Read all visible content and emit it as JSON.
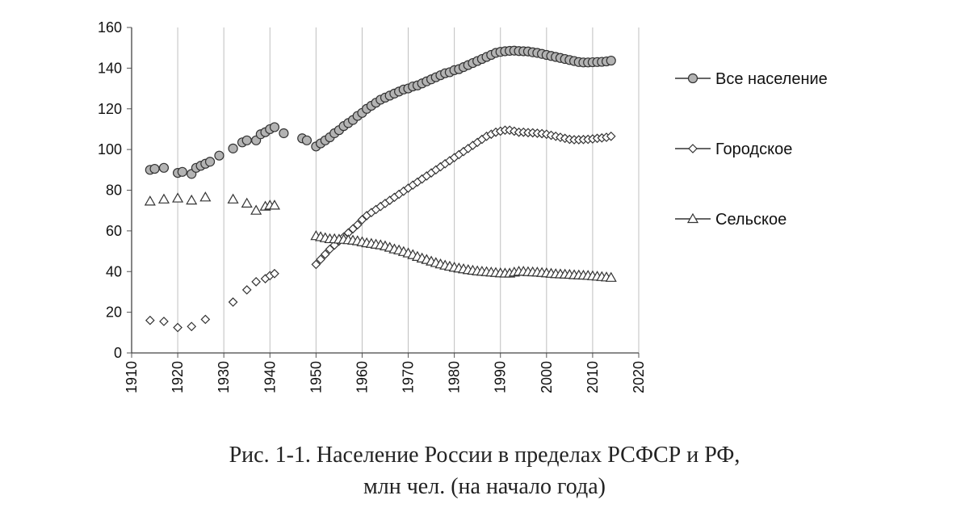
{
  "caption": {
    "line1": "Рис. 1-1. Население России в пределах РСФСР и РФ,",
    "line2": "млн чел. (на начало года)"
  },
  "chart_data": {
    "type": "scatter",
    "xlim": [
      1910,
      2020
    ],
    "ylim": [
      0,
      160
    ],
    "x_ticks": [
      "1910",
      "1920",
      "1930",
      "1940",
      "1950",
      "1960",
      "1970",
      "1980",
      "1990",
      "2000",
      "2010",
      "2020"
    ],
    "y_ticks": [
      "0",
      "20",
      "40",
      "60",
      "80",
      "100",
      "120",
      "140",
      "160"
    ],
    "grid": "vertical",
    "legend_position": "right",
    "colors": {
      "total_fill": "#b3b3b3",
      "stroke": "#333333",
      "grid": "#bfbfbf"
    },
    "series": [
      {
        "name": "Все население",
        "marker": "circle",
        "points": [
          [
            1914,
            90
          ],
          [
            1915,
            90.5
          ],
          [
            1917,
            91
          ],
          [
            1920,
            88.5
          ],
          [
            1921,
            89
          ],
          [
            1923,
            88
          ],
          [
            1924,
            91
          ],
          [
            1925,
            92
          ],
          [
            1926,
            93
          ],
          [
            1927,
            94
          ],
          [
            1929,
            97
          ],
          [
            1932,
            100.5
          ],
          [
            1934,
            103.5
          ],
          [
            1935,
            104.5
          ],
          [
            1937,
            104.5
          ],
          [
            1938,
            107.5
          ],
          [
            1939,
            108.5
          ],
          [
            1940,
            110
          ],
          [
            1941,
            111
          ],
          [
            1943,
            108
          ],
          [
            1947,
            105.5
          ],
          [
            1948,
            104.5
          ],
          [
            1950,
            101.5
          ],
          [
            1951,
            103
          ],
          [
            1952,
            104.5
          ],
          [
            1953,
            106
          ],
          [
            1954,
            108
          ],
          [
            1955,
            109.5
          ],
          [
            1956,
            111.5
          ],
          [
            1957,
            113
          ],
          [
            1958,
            114.5
          ],
          [
            1959,
            116.5
          ],
          [
            1960,
            118
          ],
          [
            1961,
            120
          ],
          [
            1962,
            121.5
          ],
          [
            1963,
            123
          ],
          [
            1964,
            124.5
          ],
          [
            1965,
            125.5
          ],
          [
            1966,
            126.5
          ],
          [
            1967,
            127.5
          ],
          [
            1968,
            128.5
          ],
          [
            1969,
            129.5
          ],
          [
            1970,
            130
          ],
          [
            1971,
            131
          ],
          [
            1972,
            131.5
          ],
          [
            1973,
            132.5
          ],
          [
            1974,
            133.5
          ],
          [
            1975,
            134.5
          ],
          [
            1976,
            135.5
          ],
          [
            1977,
            136.5
          ],
          [
            1978,
            137.5
          ],
          [
            1979,
            138
          ],
          [
            1980,
            139
          ],
          [
            1981,
            139.5
          ],
          [
            1982,
            140.5
          ],
          [
            1983,
            141.5
          ],
          [
            1984,
            142.5
          ],
          [
            1985,
            143.5
          ],
          [
            1986,
            144.5
          ],
          [
            1987,
            145.5
          ],
          [
            1988,
            146.5
          ],
          [
            1989,
            147.5
          ],
          [
            1990,
            148
          ],
          [
            1991,
            148.3
          ],
          [
            1992,
            148.5
          ],
          [
            1993,
            148.6
          ],
          [
            1994,
            148.4
          ],
          [
            1995,
            148.3
          ],
          [
            1996,
            148.2
          ],
          [
            1997,
            147.8
          ],
          [
            1998,
            147.5
          ],
          [
            1999,
            147
          ],
          [
            2000,
            146.5
          ],
          [
            2001,
            146
          ],
          [
            2002,
            145.5
          ],
          [
            2003,
            145
          ],
          [
            2004,
            144.5
          ],
          [
            2005,
            144
          ],
          [
            2006,
            143.5
          ],
          [
            2007,
            143
          ],
          [
            2008,
            142.8
          ],
          [
            2009,
            142.8
          ],
          [
            2010,
            142.9
          ],
          [
            2011,
            143
          ],
          [
            2012,
            143.1
          ],
          [
            2013,
            143.3
          ],
          [
            2014,
            143.7
          ]
        ]
      },
      {
        "name": "Городское",
        "marker": "diamond",
        "points": [
          [
            1914,
            16
          ],
          [
            1917,
            15.5
          ],
          [
            1920,
            12.5
          ],
          [
            1923,
            13
          ],
          [
            1926,
            16.5
          ],
          [
            1932,
            25
          ],
          [
            1935,
            31
          ],
          [
            1937,
            35
          ],
          [
            1939,
            36.5
          ],
          [
            1940,
            38
          ],
          [
            1941,
            39
          ],
          [
            1950,
            43.5
          ],
          [
            1951,
            46
          ],
          [
            1952,
            48.5
          ],
          [
            1953,
            51
          ],
          [
            1954,
            53
          ],
          [
            1955,
            55
          ],
          [
            1956,
            57
          ],
          [
            1957,
            59
          ],
          [
            1958,
            61
          ],
          [
            1959,
            63
          ],
          [
            1960,
            65.5
          ],
          [
            1961,
            67.5
          ],
          [
            1962,
            69
          ],
          [
            1963,
            70.5
          ],
          [
            1964,
            72
          ],
          [
            1965,
            73.5
          ],
          [
            1966,
            75
          ],
          [
            1967,
            76.5
          ],
          [
            1968,
            78
          ],
          [
            1969,
            79.5
          ],
          [
            1970,
            81
          ],
          [
            1971,
            82.5
          ],
          [
            1972,
            84
          ],
          [
            1973,
            85.5
          ],
          [
            1974,
            87
          ],
          [
            1975,
            88.5
          ],
          [
            1976,
            90
          ],
          [
            1977,
            91.5
          ],
          [
            1978,
            93
          ],
          [
            1979,
            94.5
          ],
          [
            1980,
            96
          ],
          [
            1981,
            97.5
          ],
          [
            1982,
            99
          ],
          [
            1983,
            100.5
          ],
          [
            1984,
            102
          ],
          [
            1985,
            103.5
          ],
          [
            1986,
            105
          ],
          [
            1987,
            106.5
          ],
          [
            1988,
            107.5
          ],
          [
            1989,
            108.5
          ],
          [
            1990,
            109
          ],
          [
            1991,
            109.5
          ],
          [
            1992,
            109.5
          ],
          [
            1993,
            109
          ],
          [
            1994,
            108.5
          ],
          [
            1995,
            108.5
          ],
          [
            1996,
            108.3
          ],
          [
            1997,
            108.2
          ],
          [
            1998,
            108
          ],
          [
            1999,
            107.8
          ],
          [
            2000,
            107.5
          ],
          [
            2001,
            107
          ],
          [
            2002,
            106.5
          ],
          [
            2003,
            106
          ],
          [
            2004,
            105.5
          ],
          [
            2005,
            105
          ],
          [
            2006,
            104.8
          ],
          [
            2007,
            104.8
          ],
          [
            2008,
            104.9
          ],
          [
            2009,
            105
          ],
          [
            2010,
            105.2
          ],
          [
            2011,
            105.5
          ],
          [
            2012,
            105.7
          ],
          [
            2013,
            106
          ],
          [
            2014,
            106.5
          ]
        ]
      },
      {
        "name": "Сельское",
        "marker": "triangle",
        "points": [
          [
            1914,
            74.5
          ],
          [
            1917,
            75.5
          ],
          [
            1920,
            76
          ],
          [
            1923,
            75
          ],
          [
            1926,
            76.5
          ],
          [
            1932,
            75.5
          ],
          [
            1935,
            73.5
          ],
          [
            1937,
            70
          ],
          [
            1939,
            72
          ],
          [
            1940,
            72.5
          ],
          [
            1941,
            72.5
          ],
          [
            1950,
            57.5
          ],
          [
            1951,
            57
          ],
          [
            1952,
            56.5
          ],
          [
            1953,
            56
          ],
          [
            1954,
            56
          ],
          [
            1955,
            55.8
          ],
          [
            1956,
            55.7
          ],
          [
            1957,
            55.5
          ],
          [
            1958,
            55.3
          ],
          [
            1959,
            55
          ],
          [
            1960,
            54.5
          ],
          [
            1961,
            54
          ],
          [
            1962,
            53.7
          ],
          [
            1963,
            53.3
          ],
          [
            1964,
            53
          ],
          [
            1965,
            52.5
          ],
          [
            1966,
            51.8
          ],
          [
            1967,
            51
          ],
          [
            1968,
            50.5
          ],
          [
            1969,
            49.7
          ],
          [
            1970,
            49
          ],
          [
            1971,
            48.2
          ],
          [
            1972,
            47.3
          ],
          [
            1973,
            46.5
          ],
          [
            1974,
            45.8
          ],
          [
            1975,
            45
          ],
          [
            1976,
            44.3
          ],
          [
            1977,
            43.6
          ],
          [
            1978,
            43
          ],
          [
            1979,
            42.5
          ],
          [
            1980,
            42
          ],
          [
            1981,
            41.6
          ],
          [
            1982,
            41.2
          ],
          [
            1983,
            40.8
          ],
          [
            1984,
            40.5
          ],
          [
            1985,
            40.2
          ],
          [
            1986,
            40
          ],
          [
            1987,
            39.8
          ],
          [
            1988,
            39.6
          ],
          [
            1989,
            39.4
          ],
          [
            1990,
            39.2
          ],
          [
            1991,
            39.1
          ],
          [
            1992,
            39.1
          ],
          [
            1993,
            39.6
          ],
          [
            1994,
            40
          ],
          [
            1995,
            40
          ],
          [
            1996,
            39.8
          ],
          [
            1997,
            39.7
          ],
          [
            1998,
            39.6
          ],
          [
            1999,
            39.4
          ],
          [
            2000,
            39.2
          ],
          [
            2001,
            39
          ],
          [
            2002,
            38.8
          ],
          [
            2003,
            38.7
          ],
          [
            2004,
            38.6
          ],
          [
            2005,
            38.5
          ],
          [
            2006,
            38.3
          ],
          [
            2007,
            38.2
          ],
          [
            2008,
            38.1
          ],
          [
            2009,
            38
          ],
          [
            2010,
            37.8
          ],
          [
            2011,
            37.6
          ],
          [
            2012,
            37.4
          ],
          [
            2013,
            37.2
          ],
          [
            2014,
            37
          ]
        ]
      }
    ]
  }
}
